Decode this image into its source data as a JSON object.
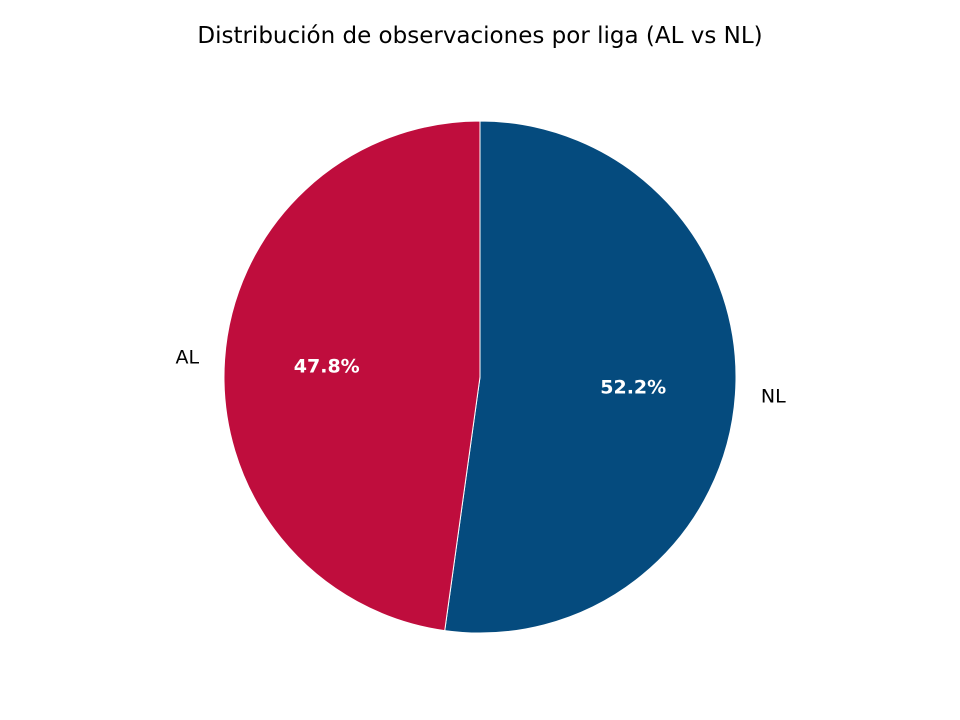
{
  "chart_data": {
    "type": "pie",
    "title": "Distribución de observaciones por liga (AL vs NL)",
    "slices": [
      {
        "label": "NL",
        "value": 52.2,
        "display": "52.2%",
        "color": "#054b7e"
      },
      {
        "label": "AL",
        "value": 47.8,
        "display": "47.8%",
        "color": "#bf0d3d"
      }
    ],
    "start_angle_deg": 90,
    "direction": "clockwise",
    "legend": "none",
    "pct_label_color": "#ffffff"
  }
}
